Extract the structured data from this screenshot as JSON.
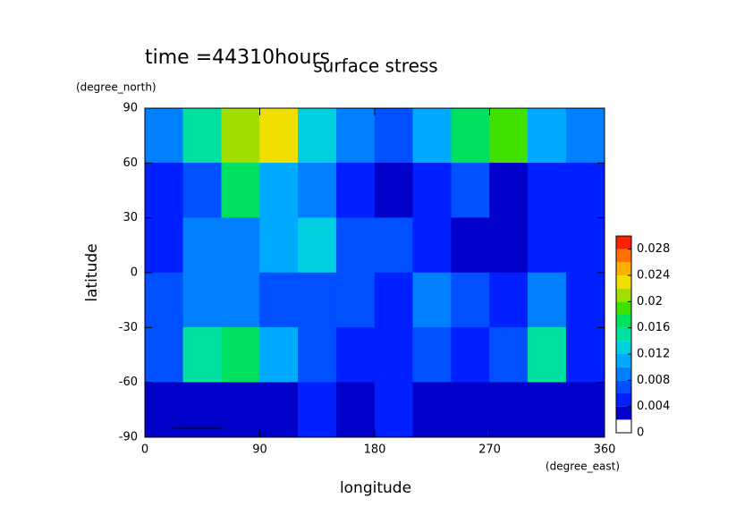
{
  "chart_data": {
    "type": "contour",
    "title": "time =44310hours",
    "subtitle": "surface stress",
    "x_label": "longitude",
    "y_label": "latitude",
    "x_unit": "(degree_east)",
    "y_unit": "(degree_north)",
    "xlim": [
      0,
      360
    ],
    "xticks": [
      0,
      90,
      180,
      270,
      360
    ],
    "ylim": [
      -90,
      90
    ],
    "yticks": [
      -90,
      -60,
      -30,
      0,
      30,
      60,
      90
    ],
    "x": [
      15,
      45,
      75,
      105,
      135,
      165,
      195,
      225,
      255,
      285,
      315,
      345
    ],
    "y": [
      75,
      45,
      15,
      -15,
      -45,
      -75
    ],
    "z": [
      [
        0.008,
        0.014,
        0.02,
        0.022,
        0.012,
        0.008,
        0.006,
        0.01,
        0.016,
        0.018,
        0.01,
        0.008
      ],
      [
        0.004,
        0.006,
        0.016,
        0.01,
        0.008,
        0.004,
        0.002,
        0.004,
        0.006,
        0.002,
        0.004,
        0.004
      ],
      [
        0.004,
        0.008,
        0.008,
        0.01,
        0.012,
        0.006,
        0.006,
        0.004,
        0.002,
        0.002,
        0.004,
        0.004
      ],
      [
        0.006,
        0.008,
        0.008,
        0.006,
        0.006,
        0.006,
        0.004,
        0.008,
        0.006,
        0.004,
        0.008,
        0.004
      ],
      [
        0.006,
        0.014,
        0.016,
        0.01,
        0.006,
        0.004,
        0.004,
        0.006,
        0.004,
        0.006,
        0.014,
        0.004
      ],
      [
        0.002,
        0.002,
        0.002,
        0.002,
        0.004,
        0.002,
        0.004,
        0.002,
        0.002,
        0.002,
        0.002,
        0.002
      ]
    ],
    "clim": [
      0,
      0.03
    ],
    "cticks": [
      0,
      0.004,
      0.008,
      0.012,
      0.016,
      0.02,
      0.024,
      0.028
    ],
    "colors": [
      "#ffffff",
      "#0000c8",
      "#0020ff",
      "#0050ff",
      "#0080ff",
      "#00aaff",
      "#00d0e0",
      "#00e0a0",
      "#00e060",
      "#40e000",
      "#a0e000",
      "#f0e000",
      "#ffb000",
      "#ff7000",
      "#ff2000"
    ]
  }
}
